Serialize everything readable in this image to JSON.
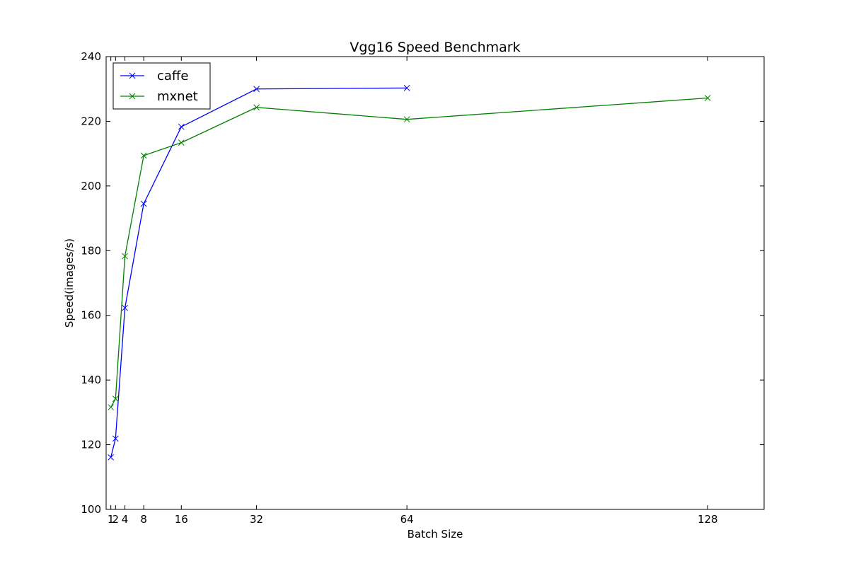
{
  "chart_data": {
    "type": "line",
    "title": "Vgg16 Speed Benchmark",
    "xlabel": "Batch Size",
    "ylabel": "Speed(images/s)",
    "xlim": [
      0,
      140
    ],
    "ylim": [
      100,
      240
    ],
    "xticks": [
      1,
      2,
      4,
      8,
      16,
      32,
      64,
      128
    ],
    "yticks": [
      100,
      120,
      140,
      160,
      180,
      200,
      220,
      240
    ],
    "grid": false,
    "legend_position": "top-left",
    "marker": "x",
    "series": [
      {
        "name": "caffe",
        "color": "#0000ff",
        "x": [
          1,
          2,
          4,
          8,
          16,
          32,
          64
        ],
        "y": [
          116.1,
          121.9,
          162.3,
          194.5,
          218.3,
          230.0,
          230.3
        ]
      },
      {
        "name": "mxnet",
        "color": "#008000",
        "x": [
          1,
          2,
          4,
          8,
          16,
          32,
          64,
          128
        ],
        "y": [
          131.6,
          134.2,
          178.3,
          209.4,
          213.4,
          224.3,
          220.6,
          227.2
        ]
      }
    ]
  }
}
